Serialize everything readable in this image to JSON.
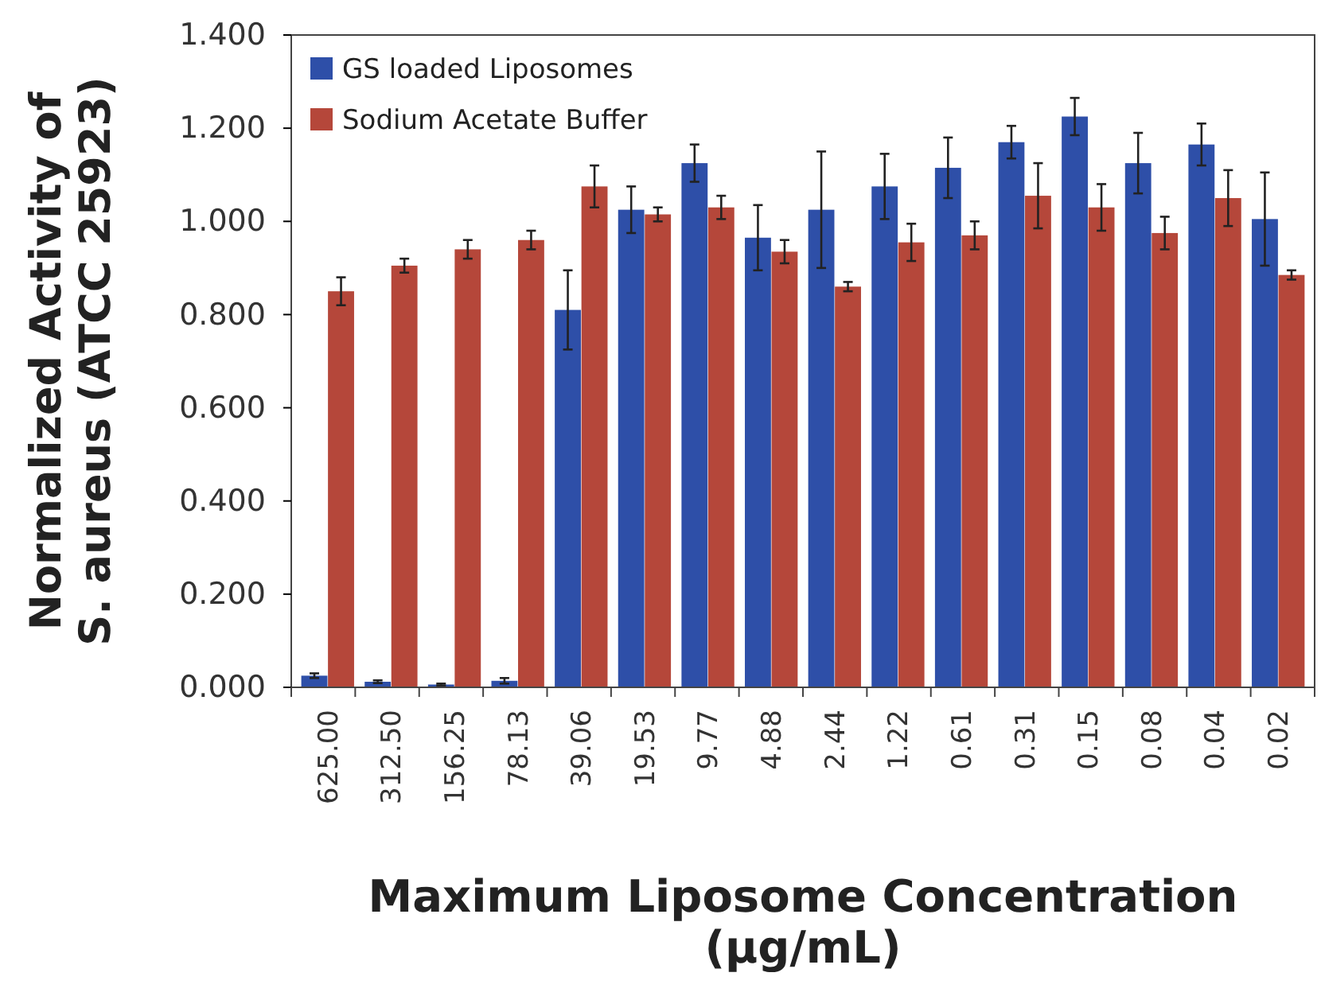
{
  "chart_data": {
    "type": "bar",
    "xlabel": "Maximum Liposome Concentration (µg/mL)",
    "ylabel": "Normalized Activity of S. aureus (ATCC 25923)",
    "categories": [
      "625.00",
      "312.50",
      "156.25",
      "78.13",
      "39.06",
      "19.53",
      "9.77",
      "4.88",
      "2.44",
      "1.22",
      "0.61",
      "0.31",
      "0.15",
      "0.08",
      "0.04",
      "0.02"
    ],
    "series": [
      {
        "name": "GS loaded Liposomes",
        "color": "#2e4fa8",
        "values": [
          0.025,
          0.012,
          0.006,
          0.014,
          0.81,
          1.025,
          1.125,
          0.965,
          1.025,
          1.075,
          1.115,
          1.17,
          1.225,
          1.125,
          1.165,
          1.005
        ],
        "errors": [
          0.005,
          0.003,
          0.002,
          0.006,
          0.085,
          0.05,
          0.04,
          0.07,
          0.125,
          0.07,
          0.065,
          0.035,
          0.04,
          0.065,
          0.045,
          0.1
        ]
      },
      {
        "name": "Sodium Acetate Buffer",
        "color": "#b5473a",
        "values": [
          0.85,
          0.905,
          0.94,
          0.96,
          1.075,
          1.015,
          1.03,
          0.935,
          0.86,
          0.955,
          0.97,
          1.055,
          1.03,
          0.975,
          1.05,
          0.885
        ],
        "errors": [
          0.03,
          0.015,
          0.02,
          0.02,
          0.045,
          0.015,
          0.025,
          0.025,
          0.01,
          0.04,
          0.03,
          0.07,
          0.05,
          0.035,
          0.06,
          0.01
        ]
      }
    ],
    "ylim": [
      0,
      1.4
    ],
    "yticks": [
      {
        "value": 0,
        "label": "0.000"
      },
      {
        "value": 0.2,
        "label": "0.200"
      },
      {
        "value": 0.4,
        "label": "0.400"
      },
      {
        "value": 0.6,
        "label": "0.600"
      },
      {
        "value": 0.8,
        "label": "0.800"
      },
      {
        "value": 1,
        "label": "1.000"
      },
      {
        "value": 1.2,
        "label": "1.200"
      },
      {
        "value": 1.4,
        "label": "1.400"
      }
    ],
    "legend": "top left",
    "grid": false
  }
}
